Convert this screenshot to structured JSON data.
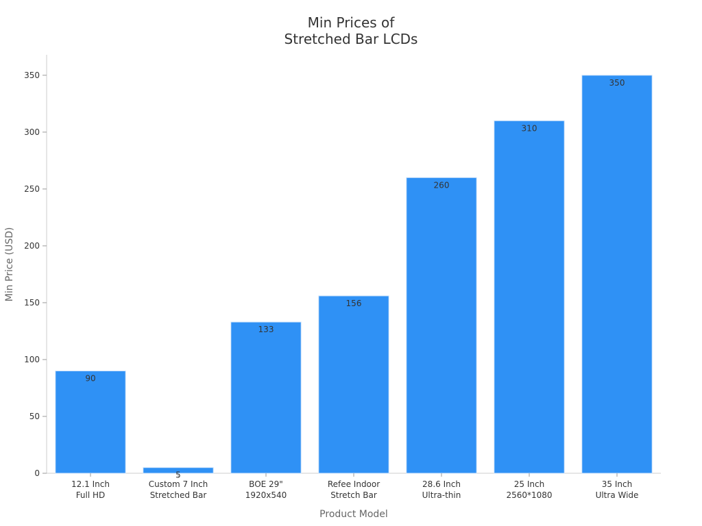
{
  "chart_data": {
    "type": "bar",
    "title": "Min Prices of\nStretched Bar LCDs",
    "x_label": "Product Model",
    "y_label": "Min Price (USD)",
    "categories": [
      "12.1 Inch\nFull HD",
      "Custom 7 Inch\nStretched Bar",
      "BOE 29\"\n1920x540",
      "Refee Indoor\nStretch Bar",
      "28.6 Inch\nUltra-thin",
      "25 Inch\n2560*1080",
      "35 Inch\nUltra Wide"
    ],
    "values": [
      90,
      5,
      133,
      156,
      260,
      310,
      350
    ],
    "color": "#2f91f5",
    "ylim": [
      0,
      368
    ],
    "yticks": [
      0,
      50,
      100,
      150,
      200,
      250,
      300,
      350
    ],
    "grid": false
  }
}
